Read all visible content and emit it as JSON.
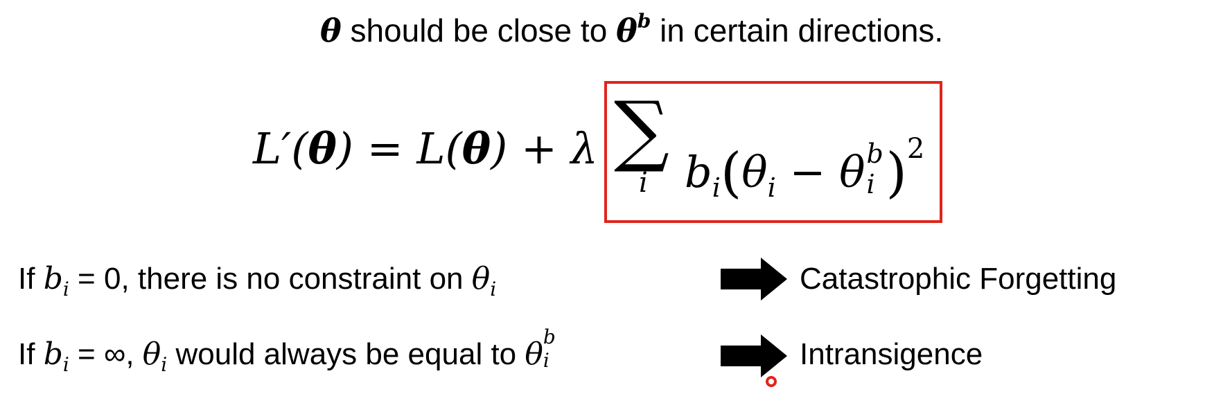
{
  "headline": {
    "theta": "θ",
    "text1": " should be close to ",
    "theta_b_base": "θ",
    "theta_b_sup": "b",
    "text2": " in certain directions."
  },
  "equation": {
    "lhs": "L′(",
    "lhs_theta": "θ",
    "mid1": ") = L(",
    "mid_theta": "θ",
    "mid2": ") + λ",
    "sigma": "∑",
    "sigma_sub": "i",
    "b": "b",
    "b_sub": "i",
    "open_paren": "(",
    "theta_i": "θ",
    "theta_i_sub": "i",
    "minus": " − ",
    "theta_ib": "θ",
    "theta_ib_sup": "b",
    "theta_ib_sub": "i",
    "close_paren": ")",
    "square": "2",
    "box_color": "#e0251b"
  },
  "lines": [
    {
      "prefix": "If ",
      "b": "b",
      "b_sub": "i",
      "cond": " = 0",
      "text": ", there is no constraint on ",
      "theta": "θ",
      "theta_sub": "i",
      "arrow_icon": "right-arrow-icon",
      "result": "Catastrophic Forgetting"
    },
    {
      "prefix": "If ",
      "b": "b",
      "b_sub": "i",
      "cond": " = ∞",
      "text_a": ", ",
      "theta": "θ",
      "theta_sub": "i",
      "text_b": " would always be equal to ",
      "theta2": "θ",
      "theta2_sup": "b",
      "theta2_sub": "i",
      "arrow_icon": "right-arrow-icon",
      "result": "Intransigence"
    }
  ],
  "pointer": {
    "icon": "pointer-dot-icon",
    "color": "#e0251b"
  }
}
